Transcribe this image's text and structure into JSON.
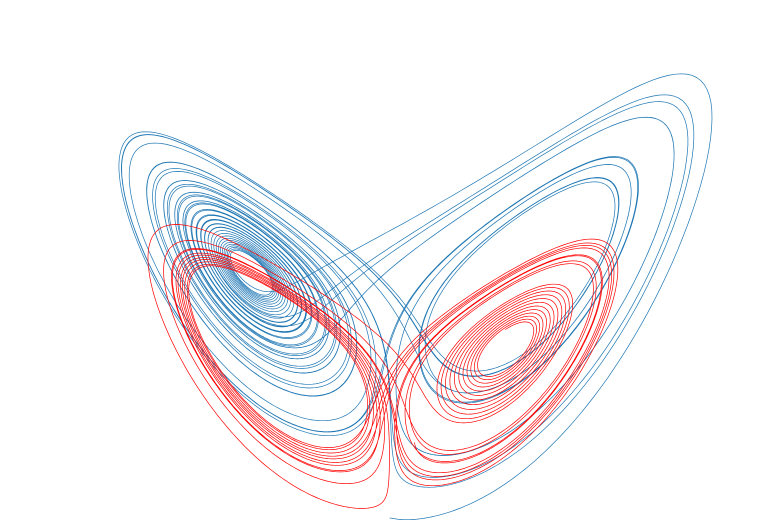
{
  "figure": {
    "background": "#ffffff",
    "axes_visible": false,
    "gridlines": false,
    "legend": "none"
  },
  "chart_data": {
    "type": "line",
    "system": "lorenz",
    "projection": "x-z",
    "params": {
      "sigma": 10,
      "rho": 28,
      "beta": 2.6667
    },
    "xlim": [
      -21,
      21
    ],
    "zlim": [
      4,
      52
    ],
    "series": [
      {
        "color": "#1f77b4",
        "initial_state": [
          0,
          1,
          1.05
        ],
        "dt": 0.0035,
        "steps": 11000,
        "line_width": 0.7
      },
      {
        "color": "#ff0000",
        "initial_state": [
          1.5,
          1.6,
          9
        ],
        "dt": 0.0035,
        "steps": 8000,
        "rho": 20,
        "line_width": 0.6
      }
    ]
  }
}
